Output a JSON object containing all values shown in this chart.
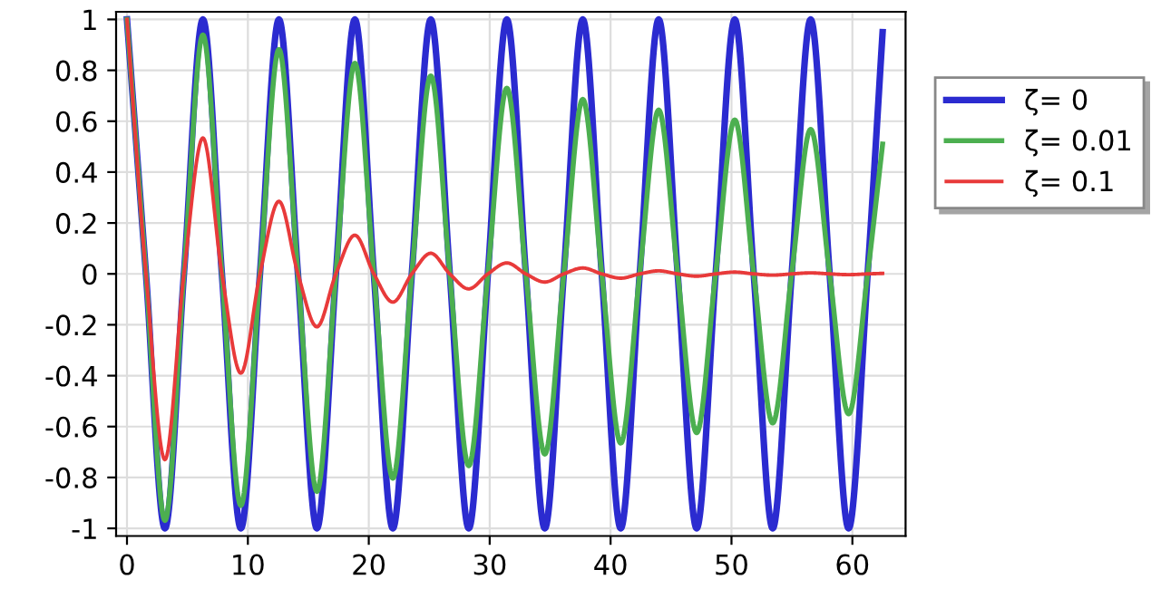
{
  "chart_data": {
    "type": "line",
    "x": [
      0,
      1.57,
      3.14,
      4.71,
      6.28,
      7.85,
      9.42,
      11.0,
      12.57,
      14.14,
      15.71,
      17.28,
      18.85,
      20.42,
      21.99,
      23.56,
      25.13,
      26.7,
      28.27,
      29.85,
      31.42,
      32.99,
      34.56,
      36.13,
      37.7,
      39.27,
      40.84,
      42.41,
      43.98,
      45.55,
      47.12,
      48.69,
      50.27,
      51.84,
      53.41,
      54.98,
      56.55,
      58.12,
      59.69,
      61.26,
      62.5
    ],
    "series": [
      {
        "name": "ζ= 0",
        "color": "#2b2bd0",
        "values": [
          1,
          0,
          -1,
          0,
          1,
          0,
          -1,
          0,
          1,
          0,
          -1,
          0,
          1,
          0,
          -1,
          0,
          1,
          0,
          -1,
          0,
          1,
          0,
          -1,
          0,
          1,
          0,
          -1,
          0,
          1,
          0,
          -1,
          0,
          1,
          0,
          -1,
          0,
          1,
          0,
          -1,
          0,
          0.95
        ]
      },
      {
        "name": "ζ= 0.01",
        "color": "#4caf50",
        "values": [
          1,
          0,
          -0.969,
          0,
          0.939,
          0,
          -0.91,
          0,
          0.882,
          0,
          -0.855,
          0,
          0.828,
          0,
          -0.803,
          0,
          0.778,
          0,
          -0.754,
          0,
          0.73,
          0,
          -0.708,
          0,
          0.686,
          0,
          -0.665,
          0,
          0.644,
          0,
          -0.624,
          0,
          0.605,
          0,
          -0.586,
          0,
          0.568,
          0,
          -0.55,
          0,
          0.51
        ]
      },
      {
        "name": "ζ= 0.1",
        "color": "#e83a3a",
        "values": [
          1,
          0,
          -0.73,
          0,
          0.534,
          0,
          -0.39,
          0,
          0.285,
          0,
          -0.208,
          0,
          0.152,
          0,
          -0.111,
          0,
          0.081,
          0,
          -0.059,
          0,
          0.043,
          0,
          -0.032,
          0,
          0.023,
          0,
          -0.017,
          0,
          0.012,
          0,
          -0.009,
          0,
          0.007,
          0,
          -0.005,
          0,
          0.004,
          0,
          -0.003,
          0,
          0.002
        ]
      }
    ],
    "xlim": [
      -0.9,
      64.4
    ],
    "ylim": [
      -1.03,
      1.03
    ],
    "xticks": [
      0,
      10,
      20,
      30,
      40,
      50,
      60
    ],
    "yticks": [
      -1,
      -0.8,
      -0.6,
      -0.4,
      -0.2,
      0,
      0.2,
      0.4,
      0.6,
      0.8,
      1
    ],
    "grid": true,
    "legend": "right",
    "marker": "none",
    "line_style": "solid"
  }
}
